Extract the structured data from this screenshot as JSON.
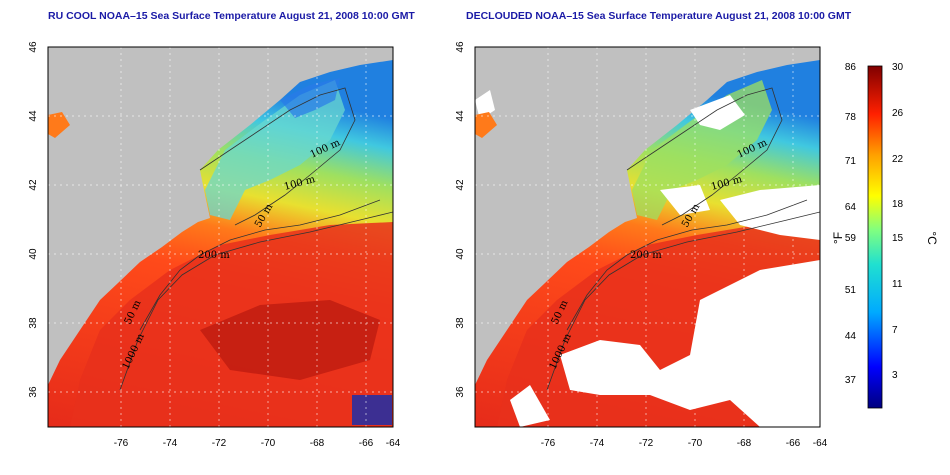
{
  "titles": {
    "left": "RU COOL NOAA–15 Sea Surface Temperature August 21, 2008 10:00 GMT",
    "right": "DECLOUDED NOAA–15 Sea Surface Temperature August 21, 2008 10:00 GMT"
  },
  "axes": {
    "x_ticks": [
      "-76",
      "-74",
      "-72",
      "-70",
      "-68",
      "-66",
      "-64"
    ],
    "y_ticks": [
      "46",
      "44",
      "42",
      "40",
      "38",
      "36"
    ]
  },
  "contours": {
    "left": [
      "100 m",
      "100 m",
      "50 m",
      "200 m",
      "50 m",
      "1000 m"
    ],
    "right": [
      "100 m",
      "100 m",
      "50 m",
      "200 m",
      "50 m",
      "1000 m"
    ]
  },
  "colorbar": {
    "f_labels": [
      "86",
      "78",
      "71",
      "64",
      "59",
      "51",
      "44",
      "37"
    ],
    "c_labels": [
      "30",
      "26",
      "22",
      "18",
      "15",
      "11",
      "7",
      "3"
    ],
    "f_unit": "°F",
    "c_unit": "°C"
  },
  "colors": {
    "land": "#c0c0c0",
    "cloud_removed": "#ffffff",
    "warm": "#e8281c",
    "cool": "#40c8e0",
    "title": "#1a1aa6"
  }
}
